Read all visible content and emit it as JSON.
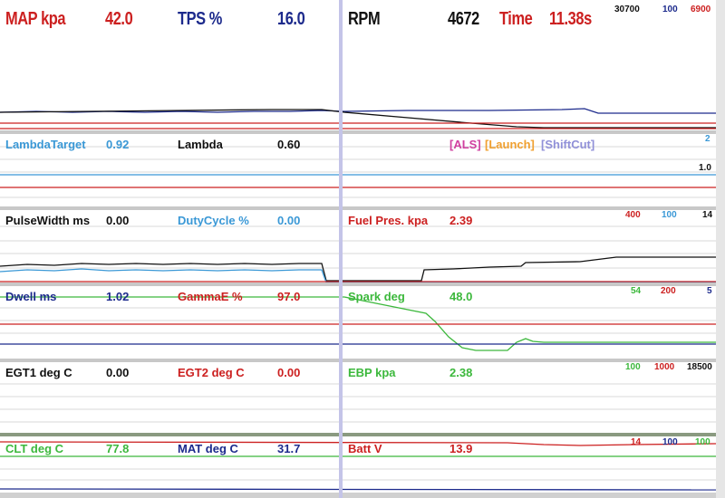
{
  "colors": {
    "red": "#cc2020",
    "navy": "#1c2a8c",
    "black": "#111111",
    "cyan": "#3a98d6",
    "green": "#3cb83c",
    "orange": "#f0a030",
    "magenta": "#d040a0",
    "lavender": "#9090d8"
  },
  "panel1": {
    "map_label": "MAP kpa",
    "map_value": "42.0",
    "tps_label": "TPS %",
    "tps_value": "16.0",
    "rpm_label": "RPM",
    "rpm_value": "4672",
    "time_label": "Time",
    "time_value": "11.38s",
    "scale_a": "30700",
    "scale_b": "100",
    "scale_c": "6900"
  },
  "panel2": {
    "lambda_target_label": "LambdaTarget",
    "lambda_target_value": "0.92",
    "lambda_label": "Lambda",
    "lambda_value": "0.60",
    "als_tag": "[ALS]",
    "launch_tag": "[Launch]",
    "shiftcut_tag": "[ShiftCut]",
    "scale_a": "2",
    "scale_b": "1.0"
  },
  "panel3": {
    "pulsewidth_label": "PulseWidth ms",
    "pulsewidth_value": "0.00",
    "dutycycle_label": "DutyCycle %",
    "dutycycle_value": "0.00",
    "fuelpres_label": "Fuel Pres. kpa",
    "fuelpres_value": "2.39",
    "scale_a": "400",
    "scale_b": "100",
    "scale_c": "14"
  },
  "panel4": {
    "dwell_label": "Dwell ms",
    "dwell_value": "1.02",
    "gamma_label": "GammaE %",
    "gamma_value": "97.0",
    "spark_label": "Spark deg",
    "spark_value": "48.0",
    "scale_a": "54",
    "scale_b": "200",
    "scale_c": "5"
  },
  "panel5": {
    "egt1_label": "EGT1 deg C",
    "egt1_value": "0.00",
    "egt2_label": "EGT2 deg C",
    "egt2_value": "0.00",
    "ebp_label": "EBP kpa",
    "ebp_value": "2.38",
    "scale_a": "100",
    "scale_b": "1000",
    "scale_c": "18500"
  },
  "panel6": {
    "clt_label": "CLT deg C",
    "clt_value": "77.8",
    "mat_label": "MAT deg C",
    "mat_value": "31.7",
    "batt_label": "Batt V",
    "batt_value": "13.9",
    "scale_a": "14",
    "scale_b": "100",
    "scale_c": "100"
  }
}
